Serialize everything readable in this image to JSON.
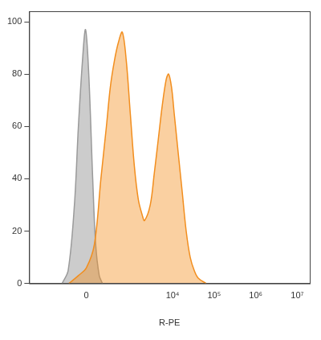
{
  "chart_data": {
    "type": "area",
    "x_label": "R-PE",
    "xlim": [
      -2000,
      20000000
    ],
    "xticks": [
      0,
      {
        "value": 10000,
        "label": "10⁴"
      },
      {
        "value": 100000,
        "label": "10⁵"
      },
      {
        "value": 1000000,
        "label": "10⁶"
      },
      {
        "value": 10000000,
        "label": "10⁷"
      }
    ],
    "ylim": [
      0,
      104
    ],
    "yticks": [
      0,
      20,
      40,
      60,
      80,
      100
    ],
    "grid": false,
    "series": [
      {
        "color": "#9a9a9a",
        "x": [
          -300,
          -200,
          -120,
          -77,
          -37,
          -8,
          22,
          60,
          90,
          130,
          170
        ],
        "values": [
          0,
          5,
          30,
          60,
          85,
          97,
          80,
          40,
          15,
          3,
          0
        ]
      },
      {
        "color": "#f28e1e",
        "x": [
          -190,
          -77,
          0,
          77,
          150,
          227,
          294,
          378,
          479,
          603,
          758,
          949,
          1190,
          1490,
          1860,
          2100,
          2890,
          3610,
          4510,
          5630,
          7010,
          8000,
          9400,
          10900,
          13600,
          17000,
          21200,
          26500,
          33000,
          41300,
          64100
        ],
        "values": [
          0,
          3,
          6,
          15,
          40,
          60,
          75,
          85,
          92,
          96,
          85,
          65,
          45,
          32,
          26,
          24,
          30,
          42,
          55,
          68,
          78,
          80,
          75,
          65,
          50,
          35,
          20,
          10,
          5,
          2,
          0
        ]
      }
    ]
  }
}
